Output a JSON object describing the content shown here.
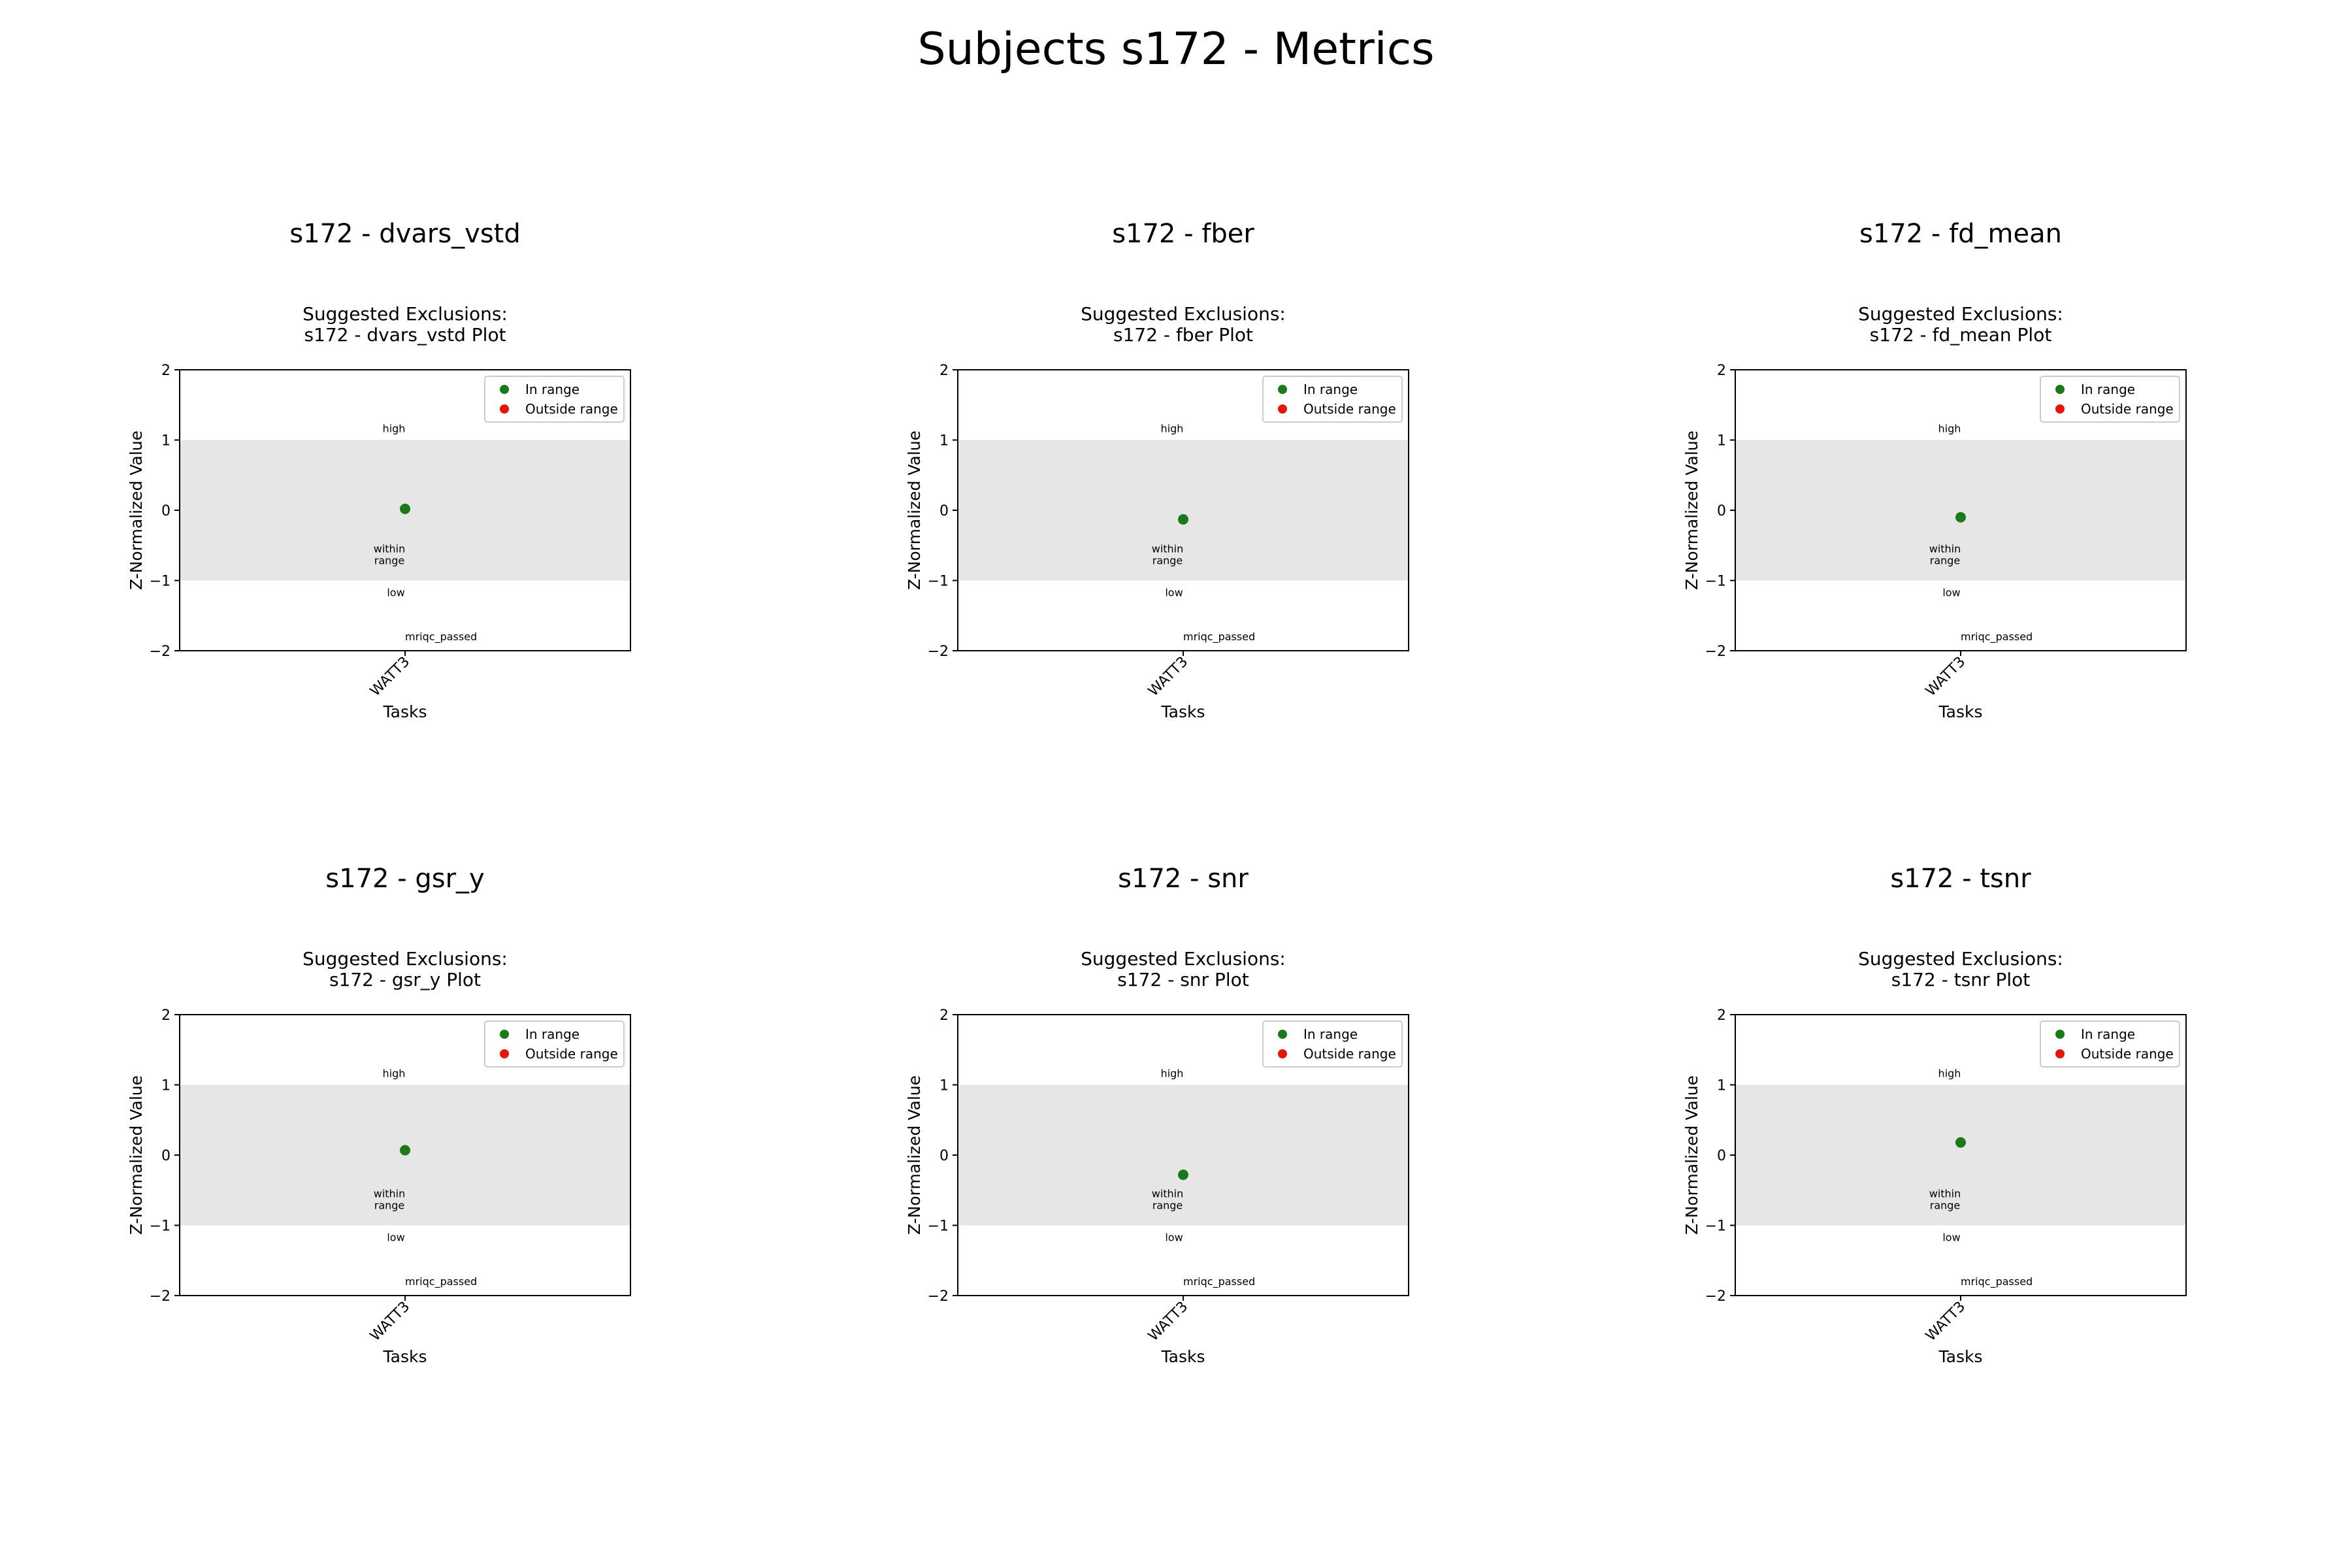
{
  "figure": {
    "title": "Subjects s172 - Metrics"
  },
  "chart_data": [
    {
      "type": "scatter",
      "header": "s172 - dvars_vstd",
      "title": "Suggested Exclusions:\ns172 - dvars_vstd Plot",
      "xlabel": "Tasks",
      "ylabel": "Z-Normalized Value",
      "categories": [
        "WATT3"
      ],
      "ylim": [
        -2,
        2
      ],
      "yticks": [
        2,
        1,
        0,
        -1,
        -2
      ],
      "series": [
        {
          "name": "In range",
          "color": "#1a7a1a",
          "values": [
            0.02
          ]
        }
      ],
      "range_band": [
        -1,
        1
      ],
      "annotations": {
        "high": "high",
        "within": "within\nrange",
        "low": "low",
        "status": "mriqc_passed"
      },
      "legend": {
        "placement": "top-right",
        "entries": [
          {
            "label": "In range",
            "color": "#1a7a1a"
          },
          {
            "label": "Outside range",
            "color": "#e8140c"
          }
        ]
      }
    },
    {
      "type": "scatter",
      "header": "s172 - fber",
      "title": "Suggested Exclusions:\ns172 - fber Plot",
      "xlabel": "Tasks",
      "ylabel": "Z-Normalized Value",
      "categories": [
        "WATT3"
      ],
      "ylim": [
        -2,
        2
      ],
      "yticks": [
        2,
        1,
        0,
        -1,
        -2
      ],
      "series": [
        {
          "name": "In range",
          "color": "#1a7a1a",
          "values": [
            -0.13
          ]
        }
      ],
      "range_band": [
        -1,
        1
      ],
      "annotations": {
        "high": "high",
        "within": "within\nrange",
        "low": "low",
        "status": "mriqc_passed"
      },
      "legend": {
        "placement": "top-right",
        "entries": [
          {
            "label": "In range",
            "color": "#1a7a1a"
          },
          {
            "label": "Outside range",
            "color": "#e8140c"
          }
        ]
      }
    },
    {
      "type": "scatter",
      "header": "s172 - fd_mean",
      "title": "Suggested Exclusions:\ns172 - fd_mean Plot",
      "xlabel": "Tasks",
      "ylabel": "Z-Normalized Value",
      "categories": [
        "WATT3"
      ],
      "ylim": [
        -2,
        2
      ],
      "yticks": [
        2,
        1,
        0,
        -1,
        -2
      ],
      "series": [
        {
          "name": "In range",
          "color": "#1a7a1a",
          "values": [
            -0.1
          ]
        }
      ],
      "range_band": [
        -1,
        1
      ],
      "annotations": {
        "high": "high",
        "within": "within\nrange",
        "low": "low",
        "status": "mriqc_passed"
      },
      "legend": {
        "placement": "top-right",
        "entries": [
          {
            "label": "In range",
            "color": "#1a7a1a"
          },
          {
            "label": "Outside range",
            "color": "#e8140c"
          }
        ]
      }
    },
    {
      "type": "scatter",
      "header": "s172 - gsr_y",
      "title": "Suggested Exclusions:\ns172 - gsr_y Plot",
      "xlabel": "Tasks",
      "ylabel": "Z-Normalized Value",
      "categories": [
        "WATT3"
      ],
      "ylim": [
        -2,
        2
      ],
      "yticks": [
        2,
        1,
        0,
        -1,
        -2
      ],
      "series": [
        {
          "name": "In range",
          "color": "#1a7a1a",
          "values": [
            0.07
          ]
        }
      ],
      "range_band": [
        -1,
        1
      ],
      "annotations": {
        "high": "high",
        "within": "within\nrange",
        "low": "low",
        "status": "mriqc_passed"
      },
      "legend": {
        "placement": "top-right",
        "entries": [
          {
            "label": "In range",
            "color": "#1a7a1a"
          },
          {
            "label": "Outside range",
            "color": "#e8140c"
          }
        ]
      }
    },
    {
      "type": "scatter",
      "header": "s172 - snr",
      "title": "Suggested Exclusions:\ns172 - snr Plot",
      "xlabel": "Tasks",
      "ylabel": "Z-Normalized Value",
      "categories": [
        "WATT3"
      ],
      "ylim": [
        -2,
        2
      ],
      "yticks": [
        2,
        1,
        0,
        -1,
        -2
      ],
      "series": [
        {
          "name": "In range",
          "color": "#1a7a1a",
          "values": [
            -0.28
          ]
        }
      ],
      "range_band": [
        -1,
        1
      ],
      "annotations": {
        "high": "high",
        "within": "within\nrange",
        "low": "low",
        "status": "mriqc_passed"
      },
      "legend": {
        "placement": "top-right",
        "entries": [
          {
            "label": "In range",
            "color": "#1a7a1a"
          },
          {
            "label": "Outside range",
            "color": "#e8140c"
          }
        ]
      }
    },
    {
      "type": "scatter",
      "header": "s172 - tsnr",
      "title": "Suggested Exclusions:\ns172 - tsnr Plot",
      "xlabel": "Tasks",
      "ylabel": "Z-Normalized Value",
      "categories": [
        "WATT3"
      ],
      "ylim": [
        -2,
        2
      ],
      "yticks": [
        2,
        1,
        0,
        -1,
        -2
      ],
      "series": [
        {
          "name": "In range",
          "color": "#1a7a1a",
          "values": [
            0.18
          ]
        }
      ],
      "range_band": [
        -1,
        1
      ],
      "annotations": {
        "high": "high",
        "within": "within\nrange",
        "low": "low",
        "status": "mriqc_passed"
      },
      "legend": {
        "placement": "top-right",
        "entries": [
          {
            "label": "In range",
            "color": "#1a7a1a"
          },
          {
            "label": "Outside range",
            "color": "#e8140c"
          }
        ]
      }
    }
  ]
}
